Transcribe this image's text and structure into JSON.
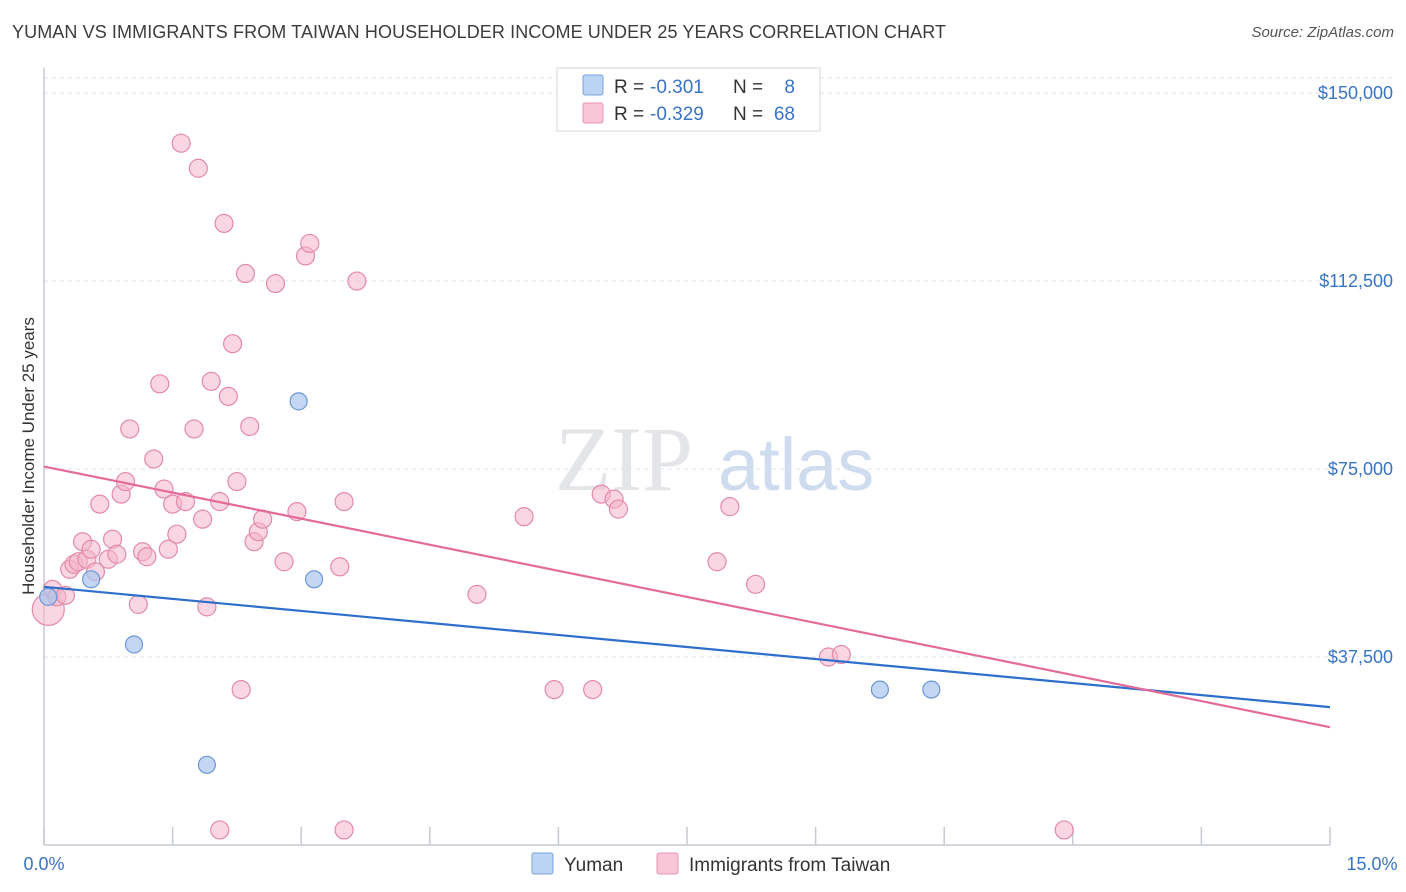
{
  "title": "YUMAN VS IMMIGRANTS FROM TAIWAN HOUSEHOLDER INCOME UNDER 25 YEARS CORRELATION CHART",
  "source": "Source: ZipAtlas.com",
  "watermark": {
    "zip": "ZIP",
    "atlas": "atlas"
  },
  "colors": {
    "blue": "#3a74c4",
    "blue_fill": "#a9c6ef",
    "blue_line": "#2f6fcc",
    "pink_fill": "#f4b4c9",
    "pink_line": "#e46b99",
    "grid": "#dfe3ea"
  },
  "legend": {
    "rows": [
      {
        "r_label": "R =",
        "r_value": "-0.301",
        "n_label": "N =",
        "n_value": "8"
      },
      {
        "r_label": "R =",
        "r_value": "-0.329",
        "n_label": "N =",
        "n_value": "68"
      }
    ]
  },
  "bottom_legend": [
    "Yuman",
    "Immigrants from Taiwan"
  ],
  "chart_data": {
    "type": "scatter",
    "title": "YUMAN VS IMMIGRANTS FROM TAIWAN HOUSEHOLDER INCOME UNDER 25 YEARS CORRELATION CHART",
    "xlabel": "",
    "ylabel": "Householder Income Under 25 years",
    "xlim": [
      0,
      15
    ],
    "ylim": [
      0,
      155000
    ],
    "x_tick_labels": [
      "0.0%",
      "15.0%"
    ],
    "y_ticks": [
      37500,
      75000,
      112500,
      150000
    ],
    "y_tick_labels": [
      "$37,500",
      "$75,000",
      "$112,500",
      "$150,000"
    ],
    "series": [
      {
        "name": "Yuman",
        "color": "#a9c6ef",
        "points": [
          [
            0.05,
            49500
          ],
          [
            0.55,
            53000
          ],
          [
            1.05,
            40000
          ],
          [
            1.9,
            16000
          ],
          [
            2.97,
            88500
          ],
          [
            3.15,
            53000
          ],
          [
            9.75,
            31000
          ],
          [
            10.35,
            31000
          ]
        ],
        "trend": [
          [
            0,
            51500
          ],
          [
            15,
            27500
          ]
        ]
      },
      {
        "name": "Immigrants from Taiwan",
        "color": "#f4b4c9",
        "points": [
          [
            0.05,
            47000
          ],
          [
            0.1,
            51000
          ],
          [
            0.15,
            49500
          ],
          [
            0.25,
            49800
          ],
          [
            0.3,
            55000
          ],
          [
            0.35,
            56000
          ],
          [
            0.4,
            56500
          ],
          [
            0.45,
            60500
          ],
          [
            0.5,
            57000
          ],
          [
            0.55,
            59000
          ],
          [
            0.6,
            54500
          ],
          [
            0.65,
            68000
          ],
          [
            0.75,
            57000
          ],
          [
            0.8,
            61000
          ],
          [
            0.85,
            58000
          ],
          [
            0.9,
            70000
          ],
          [
            0.95,
            72500
          ],
          [
            1.0,
            83000
          ],
          [
            1.1,
            48000
          ],
          [
            1.15,
            58500
          ],
          [
            1.2,
            57500
          ],
          [
            1.28,
            77000
          ],
          [
            1.35,
            92000
          ],
          [
            1.4,
            71000
          ],
          [
            1.45,
            59000
          ],
          [
            1.5,
            68000
          ],
          [
            1.55,
            62000
          ],
          [
            1.6,
            140000
          ],
          [
            1.65,
            68500
          ],
          [
            1.75,
            83000
          ],
          [
            1.8,
            135000
          ],
          [
            1.85,
            65000
          ],
          [
            1.9,
            47500
          ],
          [
            1.95,
            92500
          ],
          [
            2.05,
            68500
          ],
          [
            2.1,
            124000
          ],
          [
            2.15,
            89500
          ],
          [
            2.2,
            100000
          ],
          [
            2.25,
            72500
          ],
          [
            2.3,
            31000
          ],
          [
            2.35,
            114000
          ],
          [
            2.4,
            83500
          ],
          [
            2.45,
            60500
          ],
          [
            2.5,
            62500
          ],
          [
            2.55,
            65000
          ],
          [
            2.7,
            112000
          ],
          [
            2.8,
            56500
          ],
          [
            2.95,
            66500
          ],
          [
            3.05,
            117500
          ],
          [
            3.1,
            120000
          ],
          [
            3.45,
            55500
          ],
          [
            3.5,
            68500
          ],
          [
            3.65,
            112500
          ],
          [
            5.05,
            50000
          ],
          [
            5.6,
            65500
          ],
          [
            5.95,
            31000
          ],
          [
            6.4,
            31000
          ],
          [
            6.5,
            70000
          ],
          [
            6.65,
            69000
          ],
          [
            6.7,
            67000
          ],
          [
            7.85,
            56500
          ],
          [
            8.0,
            67500
          ],
          [
            8.3,
            52000
          ],
          [
            9.15,
            37500
          ],
          [
            9.3,
            38000
          ],
          [
            2.05,
            3000
          ],
          [
            3.5,
            3000
          ],
          [
            11.9,
            3000
          ]
        ],
        "trend": [
          [
            0,
            75500
          ],
          [
            15,
            23500
          ]
        ]
      }
    ]
  }
}
